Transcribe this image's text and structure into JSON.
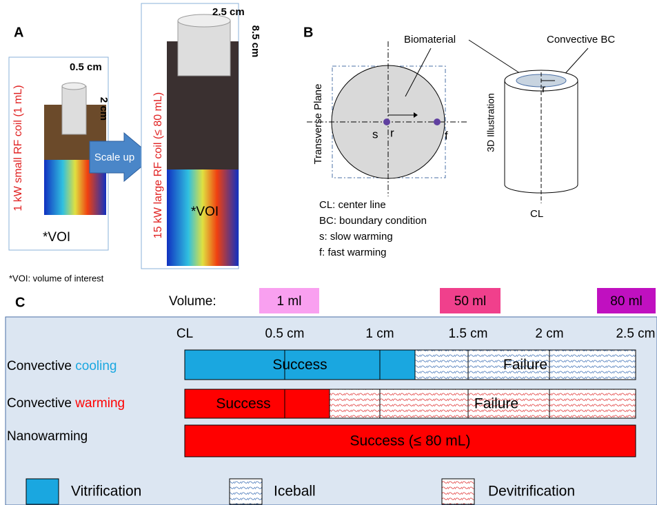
{
  "panel_a": {
    "label": "A",
    "small_coil": {
      "width": "0.5 cm",
      "height": "2 cm",
      "caption": "1 kW small RF coil (1 mL)",
      "voi": "*VOI"
    },
    "arrow": "Scale up",
    "large_coil": {
      "width": "2.5 cm",
      "height": "8.5 cm",
      "caption": "15 kW large RF coil (≤ 80 mL)",
      "voi": "*VOI"
    },
    "footnote": "*VOI: volume of interest"
  },
  "panel_b": {
    "label": "B",
    "biomaterial": "Biomaterial",
    "convective_bc": "Convective BC",
    "plane": "Transverse Plane",
    "illustration": "3D Illustration",
    "r": "r",
    "s": "s",
    "f": "f",
    "r3d": "r",
    "cl": "CL",
    "notes": [
      "CL: center line",
      "BC: boundary condition",
      "s: slow warming",
      "f: fast warming"
    ]
  },
  "panel_c": {
    "label": "C",
    "volume_label": "Volume:",
    "volumes": [
      "1 ml",
      "50 ml",
      "80 ml"
    ],
    "axis": [
      "CL",
      "0.5 cm",
      "1 cm",
      "1.5 cm",
      "2 cm",
      "2.5 cm"
    ],
    "rows": [
      {
        "prefix": "Convective ",
        "highlight": "cooling",
        "segments": [
          "Success",
          "Failure"
        ]
      },
      {
        "prefix": "Convective ",
        "highlight": "warming",
        "segments": [
          "Success",
          "Failure"
        ]
      },
      {
        "prefix": "Nanowarming",
        "segments": [
          "Success (≤ 80 mL)"
        ]
      }
    ],
    "legend": [
      "Vitrification",
      "Iceball",
      "Devitrification"
    ]
  }
}
